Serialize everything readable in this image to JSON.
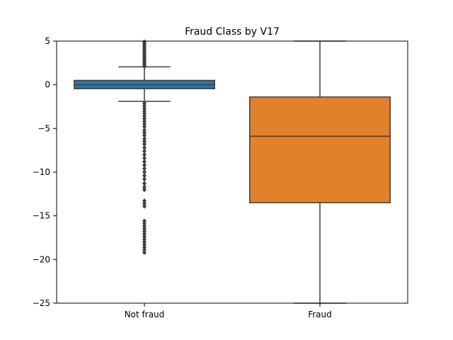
{
  "chart_data": {
    "type": "box",
    "title": "Fraud Class by V17",
    "xlabel": "",
    "ylabel": "",
    "ylim": [
      -25,
      5
    ],
    "yticks": [
      5,
      0,
      -5,
      -10,
      -15,
      -20,
      -25
    ],
    "ytick_labels": [
      "5",
      "0",
      "−5",
      "−10",
      "−15",
      "−20",
      "−25"
    ],
    "grid": false,
    "boxes": [
      {
        "category": "Not fraud",
        "color": "#3274a1",
        "q1": -0.45,
        "median": 0.0,
        "q3": 0.5,
        "whisker_low": -1.9,
        "whisker_high": 2.05,
        "outliers": [
          2.1,
          2.3,
          2.5,
          2.7,
          2.9,
          3.1,
          3.3,
          3.5,
          3.7,
          3.9,
          4.1,
          4.3,
          4.5,
          4.7,
          4.9,
          -2.1,
          -2.4,
          -2.7,
          -3.0,
          -3.3,
          -3.6,
          -3.9,
          -4.2,
          -4.5,
          -4.8,
          -5.2,
          -5.5,
          -5.8,
          -6.2,
          -6.5,
          -6.8,
          -7.2,
          -7.6,
          -8.0,
          -8.4,
          -8.8,
          -9.2,
          -9.6,
          -10.0,
          -10.4,
          -10.8,
          -11.3,
          -11.7,
          -12.0,
          -13.3,
          -13.6,
          -13.9,
          -15.6,
          -15.9,
          -16.2,
          -16.5,
          -16.8,
          -17.1,
          -17.4,
          -17.7,
          -18.0,
          -18.3,
          -18.6,
          -18.9,
          -19.2
        ]
      },
      {
        "category": "Fraud",
        "color": "#e1812c",
        "q1": -13.5,
        "median": -5.9,
        "q3": -1.4,
        "whisker_low": -25,
        "whisker_high": 5,
        "outliers": []
      }
    ]
  }
}
